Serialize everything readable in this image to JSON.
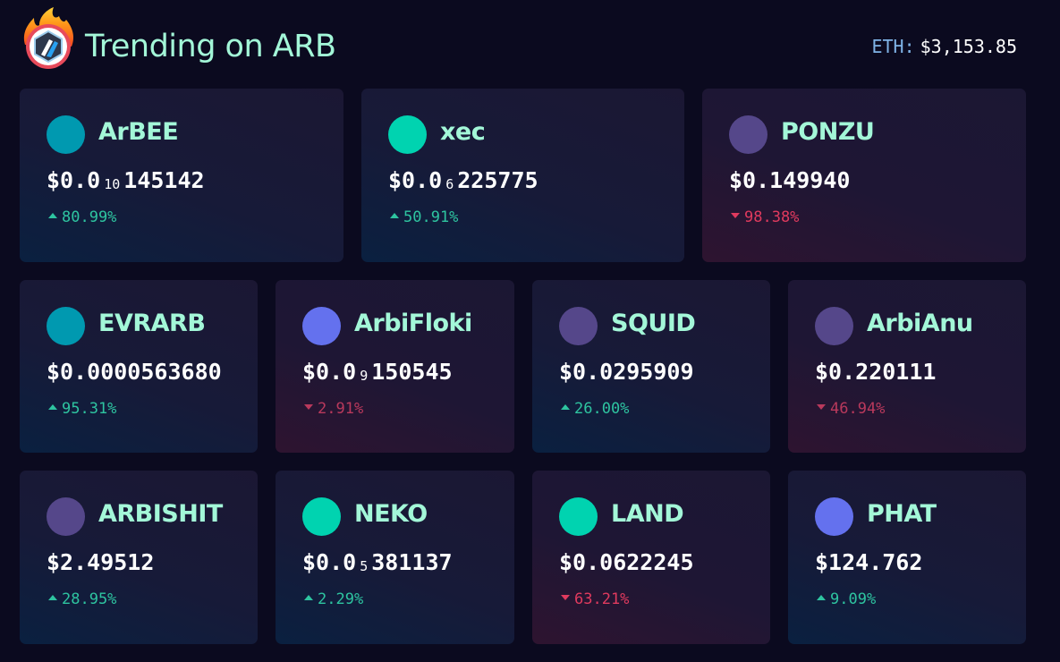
{
  "header": {
    "title": "Trending on ARB",
    "eth_label": "ETH:",
    "eth_value": "$3,153.85"
  },
  "colors": {
    "teal_dark": "#0099b0",
    "teal_bright": "#00d3b0",
    "purple": "#55478a",
    "periwinkle": "#6471ee",
    "up": "#2ec4a0",
    "down": "#e03a5e",
    "name": "#a3f7d8"
  },
  "tokens": [
    {
      "name": "ArBEE",
      "price_prefix": "$0.0",
      "price_zeros": "10",
      "price_rest": "145142",
      "change": "80.99%",
      "direction": "up",
      "icon_color": "#0099b0"
    },
    {
      "name": "xec",
      "price_prefix": "$0.0",
      "price_zeros": "6",
      "price_rest": "225775",
      "change": "50.91%",
      "direction": "up",
      "icon_color": "#00d3b0"
    },
    {
      "name": "PONZU",
      "price_prefix": "$0.149940",
      "price_zeros": "",
      "price_rest": "",
      "change": "98.38%",
      "direction": "down",
      "icon_color": "#55478a"
    },
    {
      "name": "EVRARB",
      "price_prefix": "$0.0000563680",
      "price_zeros": "",
      "price_rest": "",
      "change": "95.31%",
      "direction": "up",
      "icon_color": "#0099b0"
    },
    {
      "name": "ArbiFloki",
      "price_prefix": "$0.0",
      "price_zeros": "9",
      "price_rest": "150545",
      "change": "2.91%",
      "direction": "down",
      "icon_color": "#6471ee"
    },
    {
      "name": "SQUID",
      "price_prefix": "$0.0295909",
      "price_zeros": "",
      "price_rest": "",
      "change": "26.00%",
      "direction": "up",
      "icon_color": "#55478a"
    },
    {
      "name": "ArbiAnu",
      "price_prefix": "$0.220111",
      "price_zeros": "",
      "price_rest": "",
      "change": "46.94%",
      "direction": "down",
      "icon_color": "#55478a"
    },
    {
      "name": "ARBISHIT",
      "price_prefix": "$2.49512",
      "price_zeros": "",
      "price_rest": "",
      "change": "28.95%",
      "direction": "up",
      "icon_color": "#55478a"
    },
    {
      "name": "NEKO",
      "price_prefix": "$0.0",
      "price_zeros": "5",
      "price_rest": "381137",
      "change": "2.29%",
      "direction": "up",
      "icon_color": "#00d3b0"
    },
    {
      "name": "LAND",
      "price_prefix": "$0.0622245",
      "price_zeros": "",
      "price_rest": "",
      "change": "63.21%",
      "direction": "down",
      "icon_color": "#00d3b0"
    },
    {
      "name": "PHAT",
      "price_prefix": "$124.762",
      "price_zeros": "",
      "price_rest": "",
      "change": "9.09%",
      "direction": "up",
      "icon_color": "#6471ee"
    }
  ]
}
